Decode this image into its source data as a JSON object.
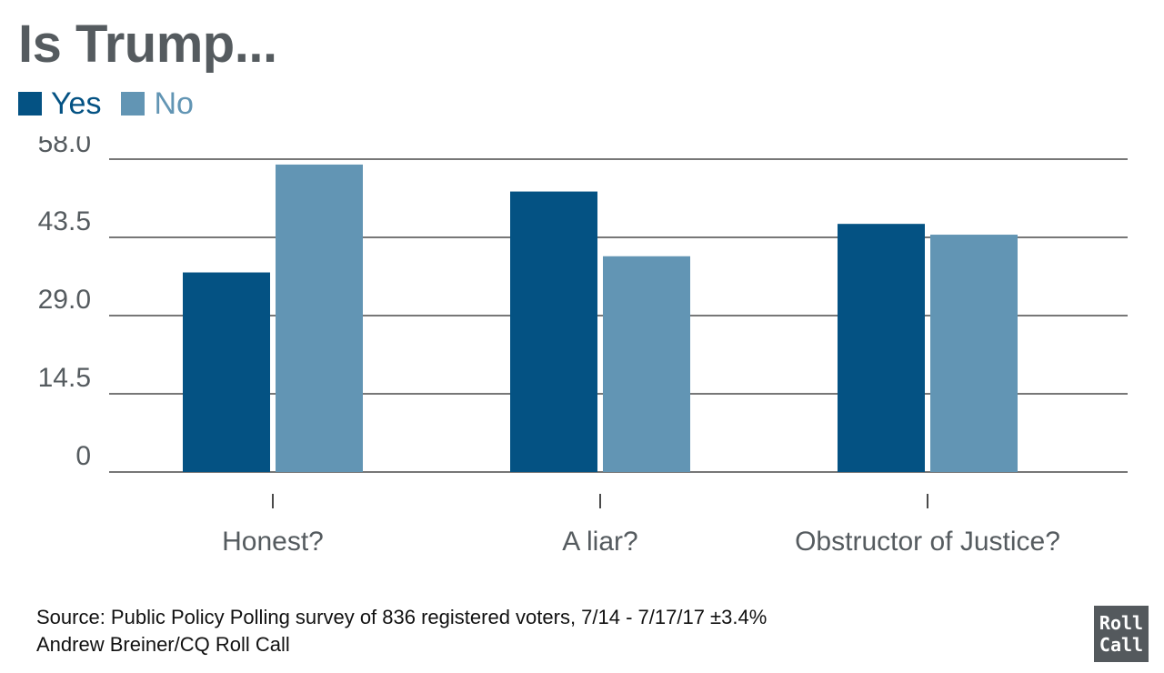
{
  "chart_data": {
    "type": "bar",
    "title": "Is Trump...",
    "categories": [
      "Honest?",
      "A liar?",
      "Obstructor of Justice?"
    ],
    "series": [
      {
        "name": "Yes",
        "color": "#045283",
        "values": [
          37,
          52,
          46
        ]
      },
      {
        "name": "No",
        "color": "#6295b4",
        "values": [
          57,
          40,
          44
        ]
      }
    ],
    "ylim": [
      0,
      58
    ],
    "yticks": [
      "0",
      "14.5",
      "29.0",
      "43.5",
      "58.0"
    ],
    "ytick_values": [
      0,
      14.5,
      29,
      43.5,
      58
    ],
    "grid": true,
    "legend_position": "top-left"
  },
  "footer": {
    "source": "Source: Public Policy Polling survey of 836 registered voters, 7/14 - 7/17/17 ±3.4%",
    "credit": "Andrew Breiner/CQ Roll Call"
  },
  "logo": {
    "line1": "Roll",
    "line2": "Call"
  }
}
